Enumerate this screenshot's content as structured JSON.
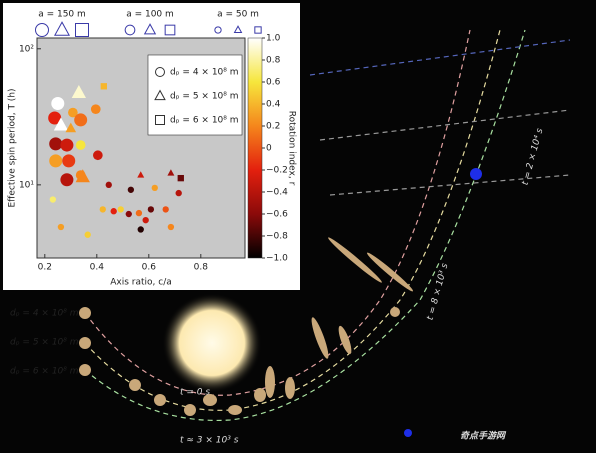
{
  "chart_data": {
    "type": "scatter",
    "y_label": "Effective spin period, T (h)",
    "x_label": "Axis ratio, c/a",
    "colorbar_label": "Rotation index, r",
    "xlim": [
      0.17,
      0.97
    ],
    "xticks": [
      0.2,
      0.4,
      0.6,
      0.8
    ],
    "ylim": [
      2.9,
      120
    ],
    "y_scale": "log",
    "yticks": [
      {
        "value": 10,
        "label": "10¹"
      },
      {
        "value": 100,
        "label": "10²"
      }
    ],
    "clim": [
      -1,
      1
    ],
    "cticks": [
      {
        "value": 1,
        "label": "1.0"
      },
      0.8,
      0.6,
      0.4,
      0.2,
      0,
      {
        "value": -0.2,
        "label": "−0.2"
      },
      {
        "value": -0.4,
        "label": "−0.4"
      },
      {
        "value": -0.6,
        "label": "−0.6"
      },
      {
        "value": -0.8,
        "label": "−0.8"
      },
      {
        "value": -1,
        "label": "−1.0"
      }
    ],
    "colormap": [
      "#000000",
      "#8b0a0a",
      "#e3200e",
      "#f5861c",
      "#f6e63c",
      "#ffffff"
    ],
    "size_legend": [
      {
        "label": "a = 150 m",
        "value": 150
      },
      {
        "label": "a = 100 m",
        "value": 100
      },
      {
        "label": "a = 50 m",
        "value": 50
      }
    ],
    "series": [
      {
        "name": "dₚ = 4 × 10⁸ m",
        "marker": "circle",
        "x": [
          0.25,
          0.308,
          0.396,
          0.238,
          0.338,
          0.242,
          0.285,
          0.242,
          0.292,
          0.338,
          0.404,
          0.285,
          0.338,
          0.446,
          0.465,
          0.492,
          0.523,
          0.562,
          0.608,
          0.531,
          0.423,
          0.588,
          0.665,
          0.685,
          0.569,
          0.231,
          0.262,
          0.365,
          0.715,
          0.623
        ],
        "values": [
          39.6,
          34,
          36,
          31,
          30,
          20,
          19.6,
          15,
          15,
          19.6,
          16.5,
          10.9,
          11.8,
          10,
          6.4,
          6.6,
          6.1,
          6.2,
          6.6,
          9.2,
          6.6,
          5.5,
          6.6,
          4.9,
          4.7,
          7.8,
          4.9,
          4.3,
          8.7,
          9.5
        ],
        "rotation_index": [
          1,
          0.3,
          0.2,
          -0.2,
          0.1,
          -0.5,
          -0.3,
          0.3,
          -0.1,
          0.6,
          -0.3,
          -0.4,
          0.2,
          -0.5,
          -0.2,
          0.5,
          -0.6,
          0.1,
          -0.7,
          -0.8,
          0.4,
          -0.3,
          0,
          0.2,
          -0.9,
          0.7,
          0.3,
          0.5,
          -0.4,
          0.3
        ],
        "sizes": [
          150,
          100,
          100,
          150,
          150,
          150,
          150,
          150,
          150,
          100,
          100,
          150,
          100,
          50,
          50,
          50,
          50,
          50,
          50,
          50,
          50,
          50,
          50,
          50,
          50,
          50,
          50,
          50,
          50,
          50
        ]
      },
      {
        "name": "dₚ = 5 × 10⁸ m",
        "marker": "triangle",
        "x": [
          0.331,
          0.262,
          0.3,
          0.346,
          0.685,
          0.569
        ],
        "values": [
          47.5,
          27.4,
          26,
          11.4,
          12.2,
          11.8
        ],
        "rotation_index": [
          0.9,
          1,
          0.3,
          0.2,
          -0.5,
          -0.3
        ],
        "sizes": [
          150,
          150,
          100,
          150,
          50,
          50
        ]
      },
      {
        "name": "dₚ = 6 × 10⁸ m",
        "marker": "square",
        "x": [
          0.427,
          0.723
        ],
        "values": [
          53,
          11.2
        ],
        "rotation_index": [
          0.4,
          -0.7
        ],
        "sizes": [
          50,
          50
        ]
      }
    ]
  },
  "illustration": {
    "times": [
      "t = 2 × 10⁴ s",
      "t = 8 × 10³ s",
      "t = 0 s",
      "t ≈ 3 × 10³ s"
    ],
    "paths": [
      {
        "label": "dₚ = 4 × 10⁸ m",
        "color": "#e0a0a0"
      },
      {
        "label": "dₚ = 5 × 10⁸ m",
        "color": "#e6dca0"
      },
      {
        "label": "dₚ = 6 × 10⁸ m",
        "color": "#a8e0a0"
      }
    ],
    "watermark": "奇点手游网"
  }
}
